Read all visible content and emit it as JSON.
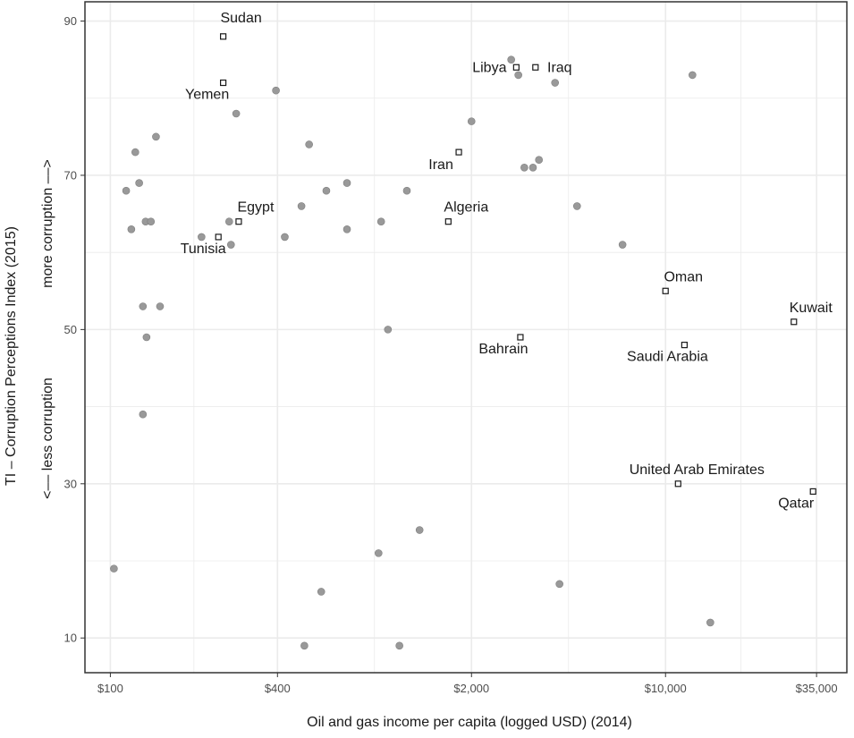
{
  "chart_data": {
    "type": "scatter",
    "xlabel": "Oil and gas income per capita (logged USD) (2014)",
    "ylabel": "TI – Corruption Perceptions Index (2015)",
    "ylabel_note_low": "<–– less corruption",
    "ylabel_note_high": "more corruption ––>",
    "x_scale": "log",
    "xlim": [
      81,
      45000
    ],
    "ylim": [
      5.5,
      92.5
    ],
    "x_ticks": [
      {
        "value": 100,
        "label": "$100"
      },
      {
        "value": 400,
        "label": "$400"
      },
      {
        "value": 2000,
        "label": "$2,000"
      },
      {
        "value": 10000,
        "label": "$10,000"
      },
      {
        "value": 35000,
        "label": "$35,000"
      }
    ],
    "y_ticks": [
      {
        "value": 10,
        "label": "10"
      },
      {
        "value": 30,
        "label": "30"
      },
      {
        "value": 50,
        "label": "50"
      },
      {
        "value": 70,
        "label": "70"
      },
      {
        "value": 90,
        "label": "90"
      }
    ],
    "grid": true,
    "colors": {
      "point": "#999999",
      "highlight_fill": "#ffffff",
      "highlight_stroke": "#1a1a1a",
      "grid": "#ebebeb",
      "panel_border": "#333333"
    },
    "labeled_points": [
      {
        "name": "Sudan",
        "x": 255,
        "y": 88
      },
      {
        "name": "Yemen",
        "x": 255,
        "y": 82
      },
      {
        "name": "Libya",
        "x": 2900,
        "y": 84
      },
      {
        "name": "Iraq",
        "x": 3400,
        "y": 84
      },
      {
        "name": "Iran",
        "x": 1800,
        "y": 73
      },
      {
        "name": "Egypt",
        "x": 290,
        "y": 64
      },
      {
        "name": "Tunisia",
        "x": 245,
        "y": 62
      },
      {
        "name": "Algeria",
        "x": 1650,
        "y": 64
      },
      {
        "name": "Oman",
        "x": 10000,
        "y": 55
      },
      {
        "name": "Kuwait",
        "x": 29000,
        "y": 51
      },
      {
        "name": "Bahrain",
        "x": 3000,
        "y": 49
      },
      {
        "name": "Saudi Arabia",
        "x": 11700,
        "y": 48
      },
      {
        "name": "United Arab Emirates",
        "x": 11100,
        "y": 30
      },
      {
        "name": "Qatar",
        "x": 34000,
        "y": 29
      }
    ],
    "other_points": [
      {
        "x": 103,
        "y": 19
      },
      {
        "x": 114,
        "y": 68
      },
      {
        "x": 119,
        "y": 63
      },
      {
        "x": 123,
        "y": 73
      },
      {
        "x": 127,
        "y": 69
      },
      {
        "x": 131,
        "y": 53
      },
      {
        "x": 131,
        "y": 39
      },
      {
        "x": 134,
        "y": 64
      },
      {
        "x": 135,
        "y": 49
      },
      {
        "x": 140,
        "y": 64
      },
      {
        "x": 146,
        "y": 75
      },
      {
        "x": 151,
        "y": 53
      },
      {
        "x": 213,
        "y": 62
      },
      {
        "x": 268,
        "y": 64
      },
      {
        "x": 272,
        "y": 61
      },
      {
        "x": 284,
        "y": 78
      },
      {
        "x": 395,
        "y": 81
      },
      {
        "x": 425,
        "y": 62
      },
      {
        "x": 488,
        "y": 66
      },
      {
        "x": 500,
        "y": 9
      },
      {
        "x": 520,
        "y": 74
      },
      {
        "x": 575,
        "y": 16
      },
      {
        "x": 600,
        "y": 68
      },
      {
        "x": 712,
        "y": 69
      },
      {
        "x": 712,
        "y": 63
      },
      {
        "x": 925,
        "y": 21
      },
      {
        "x": 945,
        "y": 64
      },
      {
        "x": 1000,
        "y": 50
      },
      {
        "x": 1100,
        "y": 9
      },
      {
        "x": 1170,
        "y": 68
      },
      {
        "x": 1300,
        "y": 24
      },
      {
        "x": 2000,
        "y": 77
      },
      {
        "x": 2780,
        "y": 85
      },
      {
        "x": 2950,
        "y": 83
      },
      {
        "x": 3100,
        "y": 71
      },
      {
        "x": 3330,
        "y": 71
      },
      {
        "x": 3500,
        "y": 72
      },
      {
        "x": 4000,
        "y": 82
      },
      {
        "x": 4150,
        "y": 17
      },
      {
        "x": 4800,
        "y": 66
      },
      {
        "x": 7000,
        "y": 61
      },
      {
        "x": 12500,
        "y": 83
      },
      {
        "x": 14500,
        "y": 12
      }
    ]
  }
}
